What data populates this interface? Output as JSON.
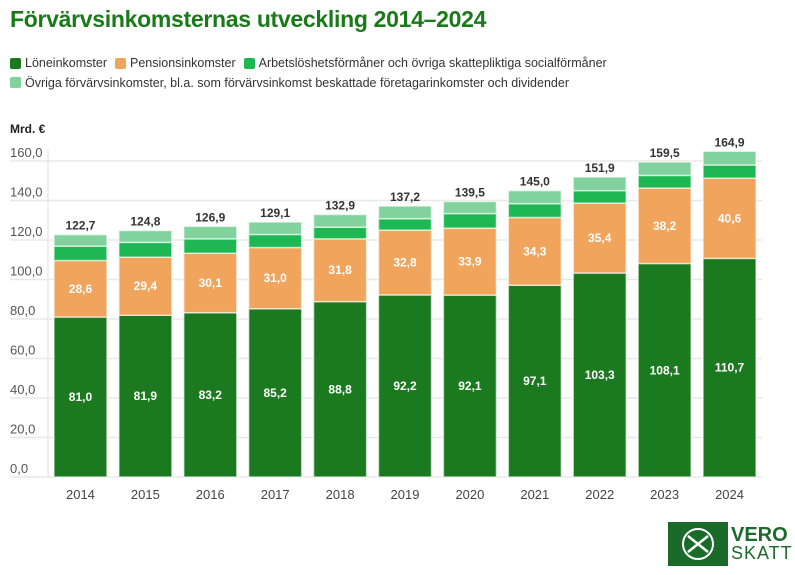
{
  "title": "Förvärvsinkomsternas utveckling 2014–2024",
  "unit_label": "Mrd. €",
  "logo": {
    "line1": "VERO",
    "line2": "SKATT"
  },
  "chart_data": {
    "type": "bar",
    "stacked": true,
    "title": "Förvärvsinkomsternas utveckling 2014–2024",
    "ylabel": "Mrd. €",
    "ylim": [
      0,
      160
    ],
    "yticks": [
      "0,0",
      "20,0",
      "40,0",
      "60,0",
      "80,0",
      "100,0",
      "120,0",
      "140,0",
      "160,0"
    ],
    "grid": true,
    "legend_position": "top",
    "categories": [
      "2014",
      "2015",
      "2016",
      "2017",
      "2018",
      "2019",
      "2020",
      "2021",
      "2022",
      "2023",
      "2024"
    ],
    "series": [
      {
        "name": "Löneinkomster",
        "color": "#1b7a1f",
        "labeled": true,
        "values": [
          81.0,
          81.9,
          83.2,
          85.2,
          88.8,
          92.2,
          92.1,
          97.1,
          103.3,
          108.1,
          110.7
        ],
        "labels": [
          "81,0",
          "81,9",
          "83,2",
          "85,2",
          "88,8",
          "92,2",
          "92,1",
          "97,1",
          "103,3",
          "108,1",
          "110,7"
        ]
      },
      {
        "name": "Pensionsinkomster",
        "color": "#f0a45c",
        "labeled": true,
        "values": [
          28.6,
          29.4,
          30.1,
          31.0,
          31.8,
          32.8,
          33.9,
          34.3,
          35.4,
          38.2,
          40.6
        ],
        "labels": [
          "28,6",
          "29,4",
          "30,1",
          "31,0",
          "31,8",
          "32,8",
          "33,9",
          "34,3",
          "35,4",
          "38,2",
          "40,6"
        ]
      },
      {
        "name": "Arbetslöshetsförmåner och övriga skattepliktiga socialförmåner",
        "color": "#1db854",
        "labeled": false,
        "values": [
          7.3,
          7.5,
          7.3,
          6.6,
          5.9,
          5.8,
          7.4,
          7.0,
          6.3,
          6.4,
          6.7
        ]
      },
      {
        "name": "Övriga förvärvsinkomster, bl.a. som förvärvsinkomst beskattade företagarinkomster och dividender",
        "color": "#82d29e",
        "labeled": false,
        "values": [
          5.8,
          6.0,
          6.3,
          6.3,
          6.4,
          6.4,
          6.1,
          6.6,
          6.9,
          6.8,
          6.9
        ]
      }
    ],
    "totals": [
      "122,7",
      "124,8",
      "126,9",
      "129,1",
      "132,9",
      "137,2",
      "139,5",
      "145,0",
      "151,9",
      "159,5",
      "164,9"
    ]
  }
}
